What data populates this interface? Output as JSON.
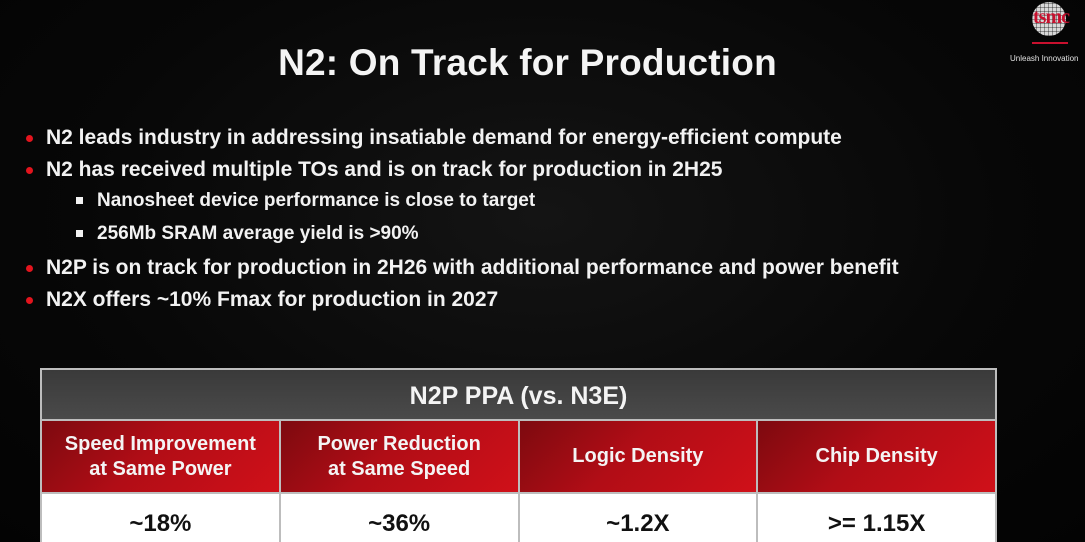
{
  "slide": {
    "title": "N2: On Track for Production",
    "logo": {
      "brand": "tsmc",
      "tagline": "Unleash Innovation"
    },
    "bullets": [
      {
        "text": "N2 leads industry in addressing insatiable demand for energy-efficient compute",
        "level": 1
      },
      {
        "text": "N2 has received multiple TOs and is on track for production in 2H25",
        "level": 1
      },
      {
        "text": "Nanosheet device performance is close to target",
        "level": 2
      },
      {
        "text": "256Mb SRAM average yield is >90%",
        "level": 2
      },
      {
        "text": "N2P is on track for production in 2H26 with additional performance and power benefit",
        "level": 1
      },
      {
        "text": "N2X offers ~10% Fmax for production in 2027",
        "level": 1
      }
    ],
    "table": {
      "title": "N2P PPA (vs. N3E)",
      "columns": [
        {
          "line1": "Speed Improvement",
          "line2": "at Same Power",
          "value": "~18%"
        },
        {
          "line1": "Power Reduction",
          "line2": "at Same Speed",
          "value": "~36%"
        },
        {
          "line1": "Logic Density",
          "line2": "",
          "value": "~1.2X"
        },
        {
          "line1": "Chip Density",
          "line2": "",
          "value": ">= 1.15X"
        }
      ]
    },
    "colors": {
      "accent_red": "#d01019",
      "bullet_red": "#e3141d",
      "header_gray": "#444444",
      "background": "#050505"
    }
  }
}
